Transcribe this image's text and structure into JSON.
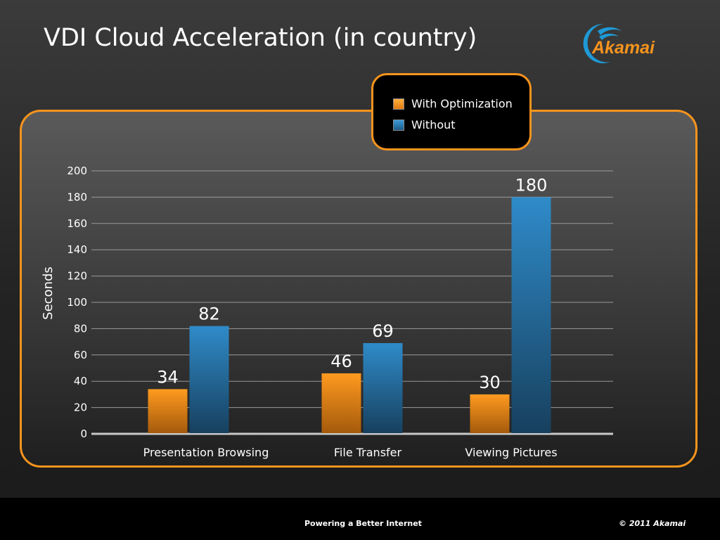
{
  "slide": {
    "title": "VDI Cloud Acceleration (in country)",
    "logo_text": "Akamai",
    "footer_center": "Powering a Better Internet",
    "footer_right": "© 2011 Akamai"
  },
  "colors": {
    "accent": "#f7941d",
    "with_optimization": "#f7941d",
    "without": "#2e86c1"
  },
  "chart_data": {
    "type": "bar",
    "title": "",
    "xlabel": "",
    "ylabel": "Seconds",
    "ylim": [
      0,
      200
    ],
    "yticks": [
      0,
      20,
      40,
      60,
      80,
      100,
      120,
      140,
      160,
      180,
      200
    ],
    "grid": true,
    "legend_position": "top-right",
    "categories": [
      "Presentation Browsing",
      "File Transfer",
      "Viewing Pictures"
    ],
    "series": [
      {
        "name": "With Optimization",
        "values": [
          34,
          46,
          30
        ]
      },
      {
        "name": "Without",
        "values": [
          82,
          69,
          180
        ]
      }
    ]
  }
}
